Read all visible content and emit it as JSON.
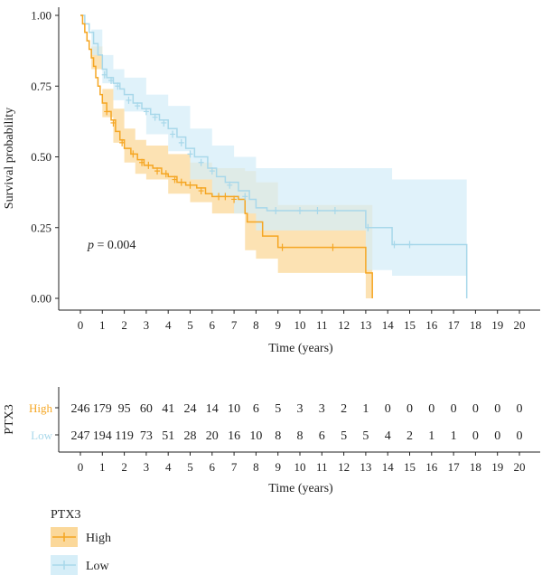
{
  "chart_data": {
    "type": "kaplan-meier",
    "pvalue_label": "p",
    "pvalue_text": " = 0.004",
    "ylabel": "Survival probability",
    "xlabel": "Time (years)",
    "xlim": [
      0,
      20
    ],
    "ylim": [
      0,
      1
    ],
    "x_ticks": [
      0,
      1,
      2,
      3,
      4,
      5,
      6,
      7,
      8,
      9,
      10,
      11,
      12,
      13,
      14,
      15,
      16,
      17,
      18,
      19,
      20
    ],
    "y_ticks": [
      "0.00",
      "0.25",
      "0.50",
      "0.75",
      "1.00"
    ],
    "y_tick_values": [
      0,
      0.25,
      0.5,
      0.75,
      1.0
    ],
    "series": [
      {
        "name": "High",
        "color": "#F5A623",
        "band_color": "#FBD89A",
        "steps": [
          [
            0,
            1.0
          ],
          [
            0.1,
            0.97
          ],
          [
            0.2,
            0.94
          ],
          [
            0.3,
            0.91
          ],
          [
            0.4,
            0.88
          ],
          [
            0.5,
            0.85
          ],
          [
            0.6,
            0.82
          ],
          [
            0.7,
            0.78
          ],
          [
            0.8,
            0.75
          ],
          [
            0.9,
            0.72
          ],
          [
            1.0,
            0.69
          ],
          [
            1.2,
            0.66
          ],
          [
            1.4,
            0.63
          ],
          [
            1.6,
            0.59
          ],
          [
            1.8,
            0.56
          ],
          [
            2.0,
            0.53
          ],
          [
            2.3,
            0.51
          ],
          [
            2.6,
            0.49
          ],
          [
            2.9,
            0.47
          ],
          [
            3.3,
            0.46
          ],
          [
            3.7,
            0.44
          ],
          [
            4.0,
            0.43
          ],
          [
            4.4,
            0.41
          ],
          [
            4.8,
            0.4
          ],
          [
            5.3,
            0.39
          ],
          [
            5.7,
            0.37
          ],
          [
            6.0,
            0.36
          ],
          [
            7.2,
            0.35
          ],
          [
            7.5,
            0.3
          ],
          [
            7.6,
            0.27
          ],
          [
            8.0,
            0.27
          ],
          [
            8.3,
            0.22
          ],
          [
            9.0,
            0.18
          ],
          [
            13.0,
            0.09
          ],
          [
            13.3,
            0.0
          ]
        ],
        "upper": [
          [
            0,
            1.0
          ],
          [
            0.5,
            0.89
          ],
          [
            1.0,
            0.74
          ],
          [
            1.5,
            0.67
          ],
          [
            2.0,
            0.6
          ],
          [
            2.5,
            0.56
          ],
          [
            3.0,
            0.54
          ],
          [
            4.0,
            0.51
          ],
          [
            5.0,
            0.48
          ],
          [
            6.0,
            0.46
          ],
          [
            7.5,
            0.45
          ],
          [
            8.0,
            0.41
          ],
          [
            9.0,
            0.33
          ],
          [
            13.0,
            0.33
          ],
          [
            13.3,
            0.33
          ]
        ],
        "lower": [
          [
            0,
            1.0
          ],
          [
            0.5,
            0.81
          ],
          [
            1.0,
            0.64
          ],
          [
            1.5,
            0.55
          ],
          [
            2.0,
            0.48
          ],
          [
            2.5,
            0.44
          ],
          [
            3.0,
            0.42
          ],
          [
            4.0,
            0.37
          ],
          [
            5.0,
            0.34
          ],
          [
            6.0,
            0.3
          ],
          [
            7.5,
            0.17
          ],
          [
            8.0,
            0.14
          ],
          [
            9.0,
            0.09
          ],
          [
            13.0,
            0.0
          ],
          [
            13.3,
            0.0
          ]
        ],
        "censors": [
          [
            1.2,
            0.66
          ],
          [
            1.5,
            0.62
          ],
          [
            1.9,
            0.55
          ],
          [
            2.4,
            0.51
          ],
          [
            2.8,
            0.48
          ],
          [
            3.1,
            0.47
          ],
          [
            3.5,
            0.45
          ],
          [
            3.9,
            0.44
          ],
          [
            4.3,
            0.42
          ],
          [
            4.6,
            0.41
          ],
          [
            5.0,
            0.4
          ],
          [
            5.5,
            0.38
          ],
          [
            6.3,
            0.36
          ],
          [
            6.6,
            0.36
          ],
          [
            7.0,
            0.35
          ],
          [
            9.2,
            0.18
          ],
          [
            11.5,
            0.18
          ]
        ]
      },
      {
        "name": "Low",
        "color": "#A8D8EA",
        "band_color": "#D6EEF8",
        "steps": [
          [
            0,
            1.0
          ],
          [
            0.2,
            0.97
          ],
          [
            0.4,
            0.94
          ],
          [
            0.6,
            0.9
          ],
          [
            0.8,
            0.86
          ],
          [
            1.0,
            0.81
          ],
          [
            1.2,
            0.78
          ],
          [
            1.5,
            0.76
          ],
          [
            1.8,
            0.74
          ],
          [
            2.0,
            0.72
          ],
          [
            2.4,
            0.69
          ],
          [
            2.8,
            0.67
          ],
          [
            3.2,
            0.65
          ],
          [
            3.6,
            0.63
          ],
          [
            4.0,
            0.6
          ],
          [
            4.4,
            0.57
          ],
          [
            4.8,
            0.53
          ],
          [
            5.2,
            0.5
          ],
          [
            5.8,
            0.46
          ],
          [
            6.2,
            0.43
          ],
          [
            6.6,
            0.41
          ],
          [
            7.2,
            0.38
          ],
          [
            7.7,
            0.35
          ],
          [
            8.0,
            0.32
          ],
          [
            8.5,
            0.31
          ],
          [
            13.0,
            0.25
          ],
          [
            14.2,
            0.19
          ],
          [
            17.6,
            0.0
          ]
        ],
        "upper": [
          [
            0,
            1.0
          ],
          [
            0.5,
            0.95
          ],
          [
            1.0,
            0.86
          ],
          [
            1.5,
            0.81
          ],
          [
            2.0,
            0.78
          ],
          [
            3.0,
            0.72
          ],
          [
            4.0,
            0.68
          ],
          [
            5.0,
            0.6
          ],
          [
            6.0,
            0.54
          ],
          [
            7.0,
            0.5
          ],
          [
            8.0,
            0.46
          ],
          [
            13.0,
            0.46
          ],
          [
            14.2,
            0.42
          ],
          [
            17.6,
            0.42
          ]
        ],
        "lower": [
          [
            0,
            1.0
          ],
          [
            0.5,
            0.86
          ],
          [
            1.0,
            0.76
          ],
          [
            1.5,
            0.7
          ],
          [
            2.0,
            0.66
          ],
          [
            3.0,
            0.58
          ],
          [
            4.0,
            0.52
          ],
          [
            5.0,
            0.42
          ],
          [
            6.0,
            0.36
          ],
          [
            7.0,
            0.3
          ],
          [
            8.0,
            0.24
          ],
          [
            13.0,
            0.1
          ],
          [
            14.2,
            0.08
          ],
          [
            17.6,
            0.08
          ]
        ],
        "censors": [
          [
            1.1,
            0.79
          ],
          [
            1.4,
            0.77
          ],
          [
            1.7,
            0.75
          ],
          [
            2.2,
            0.7
          ],
          [
            2.6,
            0.68
          ],
          [
            3.0,
            0.66
          ],
          [
            3.4,
            0.64
          ],
          [
            3.8,
            0.62
          ],
          [
            4.2,
            0.58
          ],
          [
            4.6,
            0.55
          ],
          [
            5.0,
            0.51
          ],
          [
            5.5,
            0.48
          ],
          [
            6.0,
            0.45
          ],
          [
            6.8,
            0.4
          ],
          [
            7.5,
            0.36
          ],
          [
            8.9,
            0.31
          ],
          [
            10.0,
            0.31
          ],
          [
            10.8,
            0.31
          ],
          [
            11.6,
            0.31
          ],
          [
            13.1,
            0.25
          ],
          [
            14.3,
            0.19
          ],
          [
            15.0,
            0.19
          ]
        ]
      }
    ],
    "risk_table": {
      "label": "PTX3",
      "xlabel": "Time (years)",
      "rows": [
        {
          "name": "High",
          "color": "#F5A623",
          "values": [
            246,
            179,
            95,
            60,
            41,
            24,
            14,
            10,
            6,
            5,
            3,
            3,
            2,
            1,
            0,
            0,
            0,
            0,
            0,
            0,
            0
          ]
        },
        {
          "name": "Low",
          "color": "#A8D8EA",
          "values": [
            247,
            194,
            119,
            73,
            51,
            28,
            20,
            16,
            10,
            8,
            8,
            6,
            5,
            5,
            4,
            2,
            1,
            1,
            0,
            0,
            0
          ]
        }
      ]
    },
    "legend": {
      "title": "PTX3",
      "placement": "bottom-left",
      "items": [
        {
          "label": "High",
          "color": "#F5A623"
        },
        {
          "label": "Low",
          "color": "#A8D8EA"
        }
      ]
    }
  }
}
